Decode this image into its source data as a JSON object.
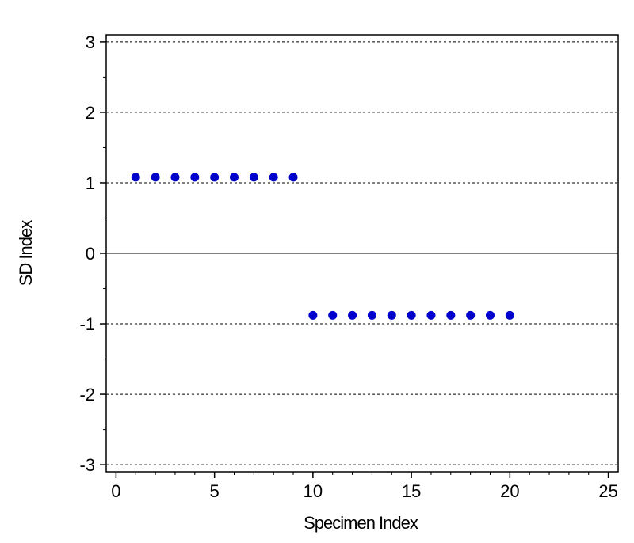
{
  "chart_data": {
    "type": "scatter",
    "title": "",
    "xlabel": "Specimen Index",
    "ylabel": "SD Index",
    "xlim": [
      -0.5,
      25.5
    ],
    "ylim": [
      -3.1,
      3.1
    ],
    "x_ticks": [
      0,
      5,
      10,
      15,
      20,
      25
    ],
    "y_ticks": [
      -3,
      -2,
      -1,
      0,
      1,
      2,
      3
    ],
    "x_tick_labels": [
      "0",
      "5",
      "10",
      "15",
      "20",
      "25"
    ],
    "y_tick_labels": [
      "-3",
      "-2",
      "-1",
      "0",
      "1",
      "2",
      "3"
    ],
    "grid": "horizontal dotted at y = -2, -1, 1, 2; solid line at y = 0",
    "marker_color": "#0000cc",
    "series": [
      {
        "points": [
          [
            1,
            1.08
          ],
          [
            2,
            1.08
          ],
          [
            3,
            1.08
          ],
          [
            4,
            1.08
          ],
          [
            5,
            1.08
          ],
          [
            6,
            1.08
          ],
          [
            7,
            1.08
          ],
          [
            8,
            1.08
          ],
          [
            9,
            1.08
          ],
          [
            10,
            -0.88
          ],
          [
            11,
            -0.88
          ],
          [
            12,
            -0.88
          ],
          [
            13,
            -0.88
          ],
          [
            14,
            -0.88
          ],
          [
            15,
            -0.88
          ],
          [
            16,
            -0.88
          ],
          [
            17,
            -0.88
          ],
          [
            18,
            -0.88
          ],
          [
            19,
            -0.88
          ],
          [
            20,
            -0.88
          ]
        ]
      }
    ]
  }
}
